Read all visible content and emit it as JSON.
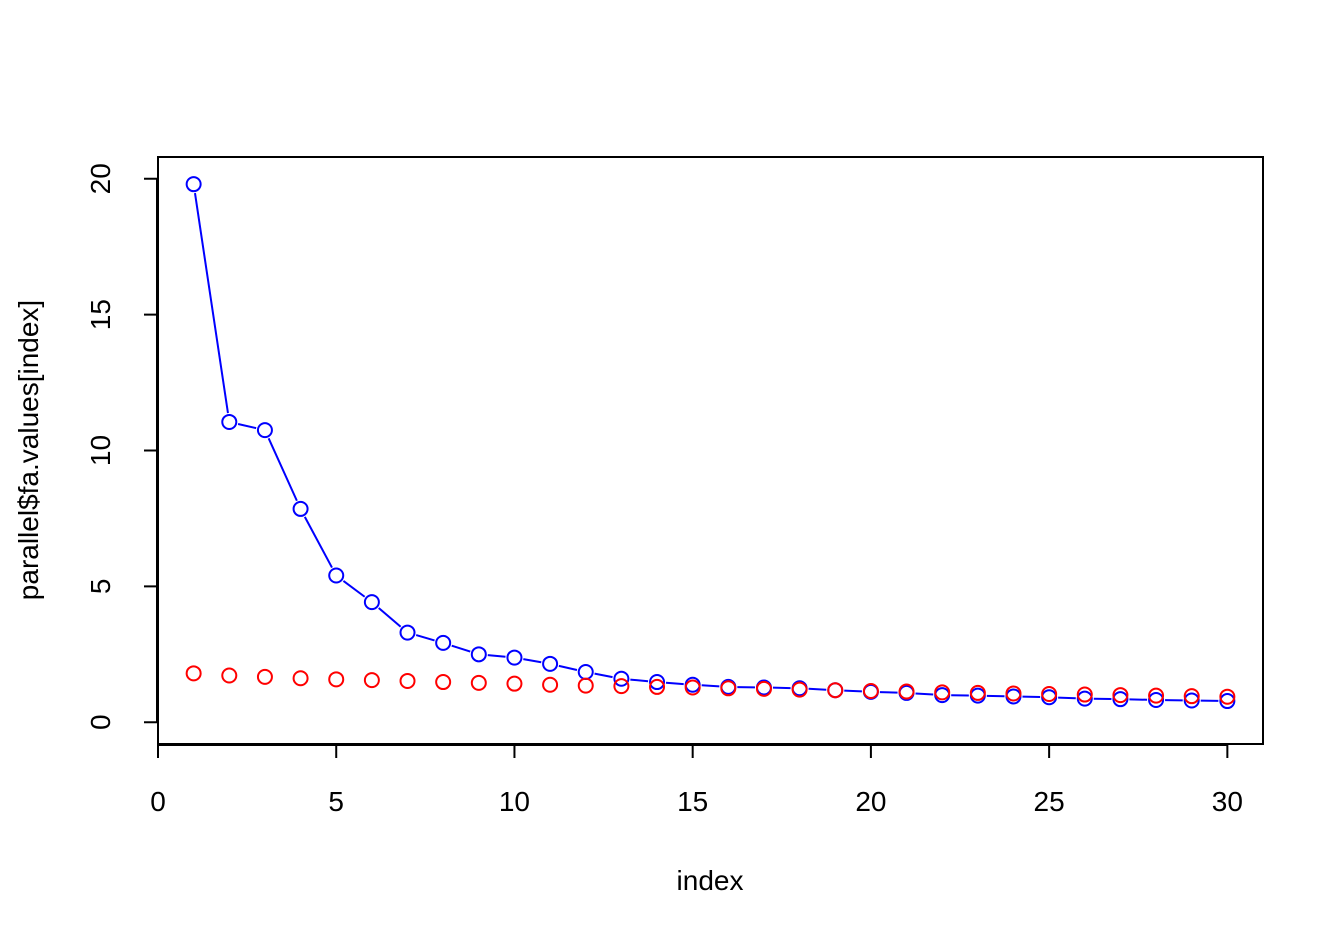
{
  "chart_data": {
    "type": "line",
    "xlabel": "index",
    "ylabel": "parallel$fa.values[index]",
    "xlim": [
      0,
      31
    ],
    "ylim": [
      -0.8,
      20.8
    ],
    "xticks": [
      0,
      5,
      10,
      15,
      20,
      25,
      30
    ],
    "yticks": [
      0,
      5,
      10,
      15,
      20
    ],
    "xtick_labels": [
      "0",
      "5",
      "10",
      "15",
      "20",
      "25",
      "30"
    ],
    "ytick_labels": [
      "0",
      "5",
      "10",
      "15",
      "20"
    ],
    "grid": false,
    "x": [
      1,
      2,
      3,
      4,
      5,
      6,
      7,
      8,
      9,
      10,
      11,
      12,
      13,
      14,
      15,
      16,
      17,
      18,
      19,
      20,
      21,
      22,
      23,
      24,
      25,
      26,
      27,
      28,
      29,
      30
    ],
    "series": [
      {
        "color": "#0000ff",
        "style": "both",
        "values": [
          19.8,
          11.05,
          10.75,
          7.85,
          5.4,
          4.42,
          3.3,
          2.92,
          2.5,
          2.38,
          2.15,
          1.85,
          1.6,
          1.48,
          1.38,
          1.3,
          1.28,
          1.25,
          1.18,
          1.12,
          1.08,
          1.0,
          0.98,
          0.95,
          0.92,
          0.87,
          0.85,
          0.82,
          0.8,
          0.78
        ]
      },
      {
        "color": "#ff0000",
        "style": "points",
        "values": [
          1.8,
          1.72,
          1.67,
          1.62,
          1.58,
          1.55,
          1.52,
          1.48,
          1.45,
          1.42,
          1.38,
          1.35,
          1.33,
          1.3,
          1.28,
          1.25,
          1.23,
          1.2,
          1.18,
          1.15,
          1.13,
          1.1,
          1.08,
          1.06,
          1.04,
          1.02,
          1.0,
          0.98,
          0.96,
          0.94
        ]
      }
    ]
  }
}
